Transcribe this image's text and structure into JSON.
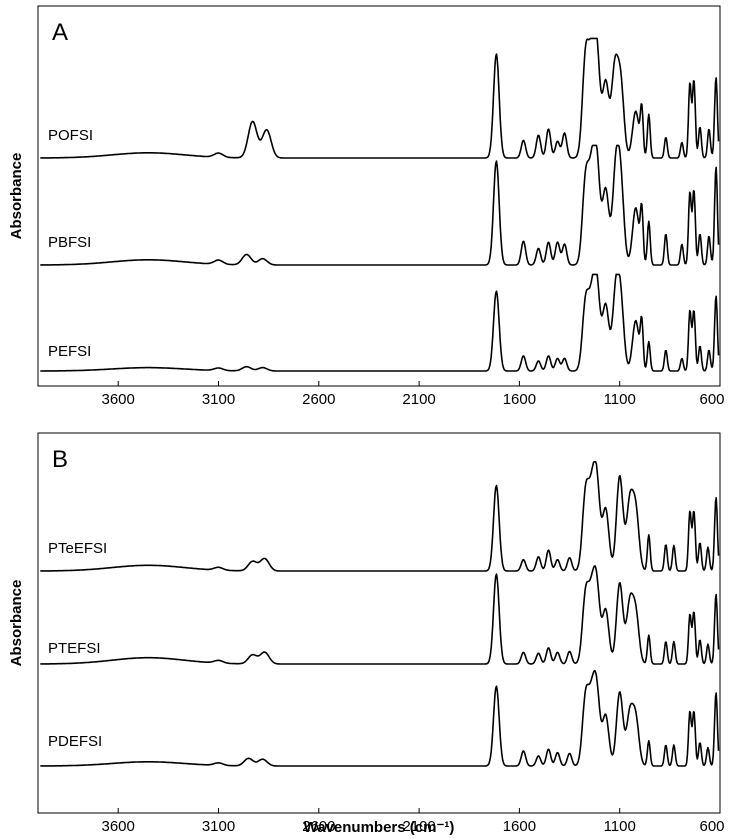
{
  "figure": {
    "xlabel": "Wavenumbers (cm⁻¹)",
    "ylabel": "Absorbance"
  },
  "chart_data": [
    {
      "type": "line",
      "panel": "A",
      "xlabel": "",
      "ylabel": "Absorbance",
      "xlim": [
        4000,
        600
      ],
      "x_reversed": true,
      "xticks": [
        "3600",
        "3100",
        "2600",
        "2100",
        "1600",
        "1100",
        "600"
      ],
      "y_ticks_shown": false,
      "series": [
        {
          "name": "POFSI",
          "peaks": [
            [
              3450,
              0.05
            ],
            [
              3100,
              0.04
            ],
            [
              2930,
              0.35
            ],
            [
              2860,
              0.27
            ],
            [
              1715,
              1.0
            ],
            [
              1580,
              0.17
            ],
            [
              1505,
              0.22
            ],
            [
              1455,
              0.28
            ],
            [
              1410,
              0.16
            ],
            [
              1375,
              0.24
            ],
            [
              1270,
              0.95
            ],
            [
              1240,
              0.75
            ],
            [
              1215,
              0.98
            ],
            [
              1170,
              0.72
            ],
            [
              1125,
              0.82
            ],
            [
              1095,
              0.7
            ],
            [
              1020,
              0.45
            ],
            [
              990,
              0.45
            ],
            [
              955,
              0.42
            ],
            [
              870,
              0.2
            ],
            [
              790,
              0.15
            ],
            [
              750,
              0.72
            ],
            [
              730,
              0.75
            ],
            [
              700,
              0.3
            ],
            [
              655,
              0.28
            ],
            [
              620,
              0.78
            ]
          ]
        },
        {
          "name": "PBFSI",
          "peaks": [
            [
              3450,
              0.05
            ],
            [
              3100,
              0.04
            ],
            [
              2960,
              0.1
            ],
            [
              2880,
              0.06
            ],
            [
              1715,
              1.0
            ],
            [
              1580,
              0.23
            ],
            [
              1505,
              0.16
            ],
            [
              1455,
              0.22
            ],
            [
              1410,
              0.22
            ],
            [
              1375,
              0.2
            ],
            [
              1270,
              0.8
            ],
            [
              1240,
              0.7
            ],
            [
              1215,
              0.95
            ],
            [
              1170,
              0.72
            ],
            [
              1120,
              0.85
            ],
            [
              1095,
              0.75
            ],
            [
              1020,
              0.55
            ],
            [
              990,
              0.5
            ],
            [
              955,
              0.42
            ],
            [
              870,
              0.3
            ],
            [
              790,
              0.2
            ],
            [
              750,
              0.7
            ],
            [
              730,
              0.72
            ],
            [
              700,
              0.3
            ],
            [
              655,
              0.28
            ],
            [
              620,
              0.95
            ]
          ]
        },
        {
          "name": "PEFSI",
          "peaks": [
            [
              3450,
              0.04
            ],
            [
              3100,
              0.03
            ],
            [
              2960,
              0.05
            ],
            [
              2880,
              0.04
            ],
            [
              1715,
              0.95
            ],
            [
              1580,
              0.18
            ],
            [
              1505,
              0.12
            ],
            [
              1455,
              0.18
            ],
            [
              1410,
              0.15
            ],
            [
              1375,
              0.15
            ],
            [
              1270,
              0.8
            ],
            [
              1240,
              0.65
            ],
            [
              1215,
              1.0
            ],
            [
              1170,
              0.78
            ],
            [
              1120,
              0.88
            ],
            [
              1095,
              0.78
            ],
            [
              1020,
              0.6
            ],
            [
              990,
              0.55
            ],
            [
              955,
              0.35
            ],
            [
              870,
              0.25
            ],
            [
              790,
              0.15
            ],
            [
              750,
              0.72
            ],
            [
              730,
              0.72
            ],
            [
              700,
              0.3
            ],
            [
              655,
              0.25
            ],
            [
              620,
              0.9
            ]
          ]
        }
      ]
    },
    {
      "type": "line",
      "panel": "B",
      "xlabel": "Wavenumbers (cm⁻¹)",
      "ylabel": "Absorbance",
      "xlim": [
        4000,
        600
      ],
      "x_reversed": true,
      "xticks": [
        "3600",
        "3100",
        "2600",
        "2100",
        "1600",
        "1100",
        "600"
      ],
      "y_ticks_shown": false,
      "series": [
        {
          "name": "PTeEFSI",
          "peaks": [
            [
              3450,
              0.06
            ],
            [
              3100,
              0.03
            ],
            [
              2930,
              0.1
            ],
            [
              2870,
              0.13
            ],
            [
              1715,
              0.9
            ],
            [
              1580,
              0.12
            ],
            [
              1505,
              0.15
            ],
            [
              1455,
              0.22
            ],
            [
              1410,
              0.12
            ],
            [
              1350,
              0.14
            ],
            [
              1270,
              0.8
            ],
            [
              1240,
              0.65
            ],
            [
              1215,
              0.9
            ],
            [
              1170,
              0.65
            ],
            [
              1100,
              1.0
            ],
            [
              1050,
              0.7
            ],
            [
              1020,
              0.62
            ],
            [
              955,
              0.38
            ],
            [
              870,
              0.28
            ],
            [
              830,
              0.27
            ],
            [
              750,
              0.63
            ],
            [
              730,
              0.63
            ],
            [
              700,
              0.3
            ],
            [
              660,
              0.25
            ],
            [
              620,
              0.78
            ]
          ]
        },
        {
          "name": "PTEFSI",
          "peaks": [
            [
              3450,
              0.07
            ],
            [
              3100,
              0.03
            ],
            [
              2930,
              0.1
            ],
            [
              2870,
              0.13
            ],
            [
              1715,
              1.0
            ],
            [
              1580,
              0.13
            ],
            [
              1505,
              0.12
            ],
            [
              1455,
              0.18
            ],
            [
              1410,
              0.13
            ],
            [
              1350,
              0.14
            ],
            [
              1270,
              0.75
            ],
            [
              1240,
              0.62
            ],
            [
              1215,
              0.82
            ],
            [
              1170,
              0.6
            ],
            [
              1100,
              0.9
            ],
            [
              1050,
              0.65
            ],
            [
              1020,
              0.55
            ],
            [
              955,
              0.32
            ],
            [
              870,
              0.25
            ],
            [
              830,
              0.25
            ],
            [
              750,
              0.55
            ],
            [
              730,
              0.58
            ],
            [
              700,
              0.27
            ],
            [
              660,
              0.22
            ],
            [
              620,
              0.78
            ]
          ]
        },
        {
          "name": "PDEFSI",
          "peaks": [
            [
              3450,
              0.05
            ],
            [
              3100,
              0.03
            ],
            [
              2950,
              0.09
            ],
            [
              2880,
              0.08
            ],
            [
              1715,
              0.95
            ],
            [
              1580,
              0.18
            ],
            [
              1505,
              0.12
            ],
            [
              1455,
              0.2
            ],
            [
              1410,
              0.16
            ],
            [
              1350,
              0.15
            ],
            [
              1270,
              0.8
            ],
            [
              1240,
              0.65
            ],
            [
              1215,
              0.85
            ],
            [
              1170,
              0.6
            ],
            [
              1100,
              0.88
            ],
            [
              1050,
              0.6
            ],
            [
              1020,
              0.55
            ],
            [
              955,
              0.3
            ],
            [
              870,
              0.25
            ],
            [
              830,
              0.25
            ],
            [
              750,
              0.65
            ],
            [
              730,
              0.65
            ],
            [
              700,
              0.28
            ],
            [
              660,
              0.22
            ],
            [
              620,
              0.88
            ]
          ]
        }
      ]
    }
  ]
}
